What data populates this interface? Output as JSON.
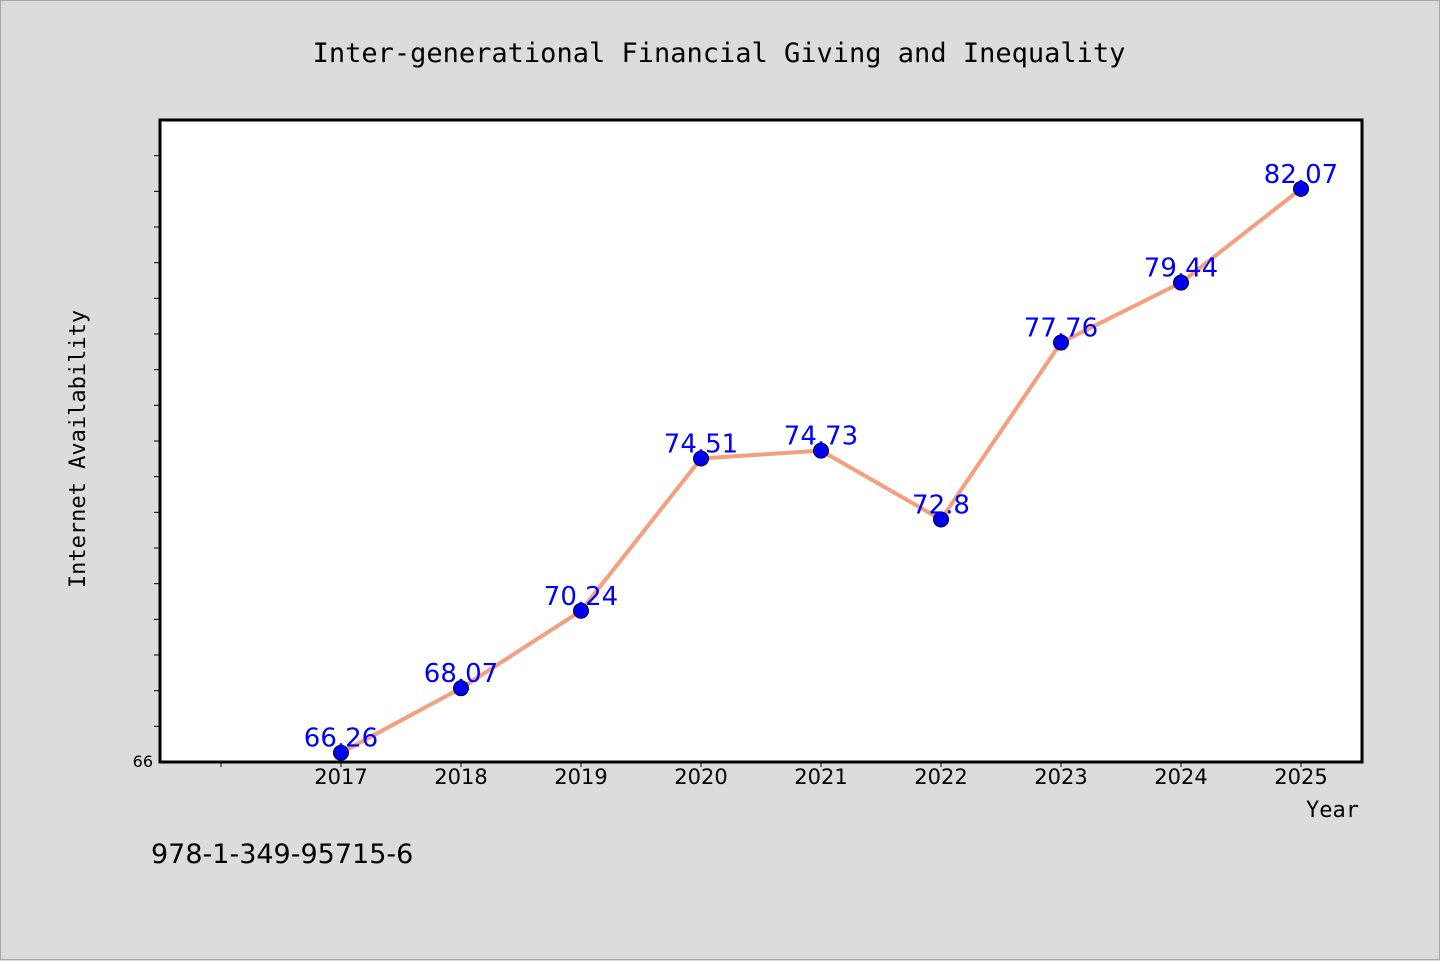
{
  "chart_data": {
    "type": "line",
    "title": "Inter-generational Financial Giving and Inequality",
    "xlabel": "Year",
    "ylabel": "Internet Availability",
    "categories": [
      "2017",
      "2018",
      "2019",
      "2020",
      "2021",
      "2022",
      "2023",
      "2024",
      "2025"
    ],
    "series": [
      {
        "values": [
          66.26,
          68.07,
          70.24,
          74.51,
          74.73,
          72.8,
          77.76,
          79.44,
          82.07
        ],
        "data_labels": [
          "66.26",
          "68.07",
          "70.24",
          "74.51",
          "74.73",
          "72.8",
          "77.76",
          "79.44",
          "82.07"
        ]
      }
    ],
    "ylim": [
      66,
      84
    ],
    "ytick_labels": [
      "66"
    ],
    "grid": false,
    "line_color": "#f4a07f",
    "marker_color": "#0000ee",
    "label_color": "#0000ff",
    "background_color": "#dcdcdc",
    "plot_background": "#ffffff"
  },
  "footer": {
    "text": "978-1-349-95715-6"
  }
}
